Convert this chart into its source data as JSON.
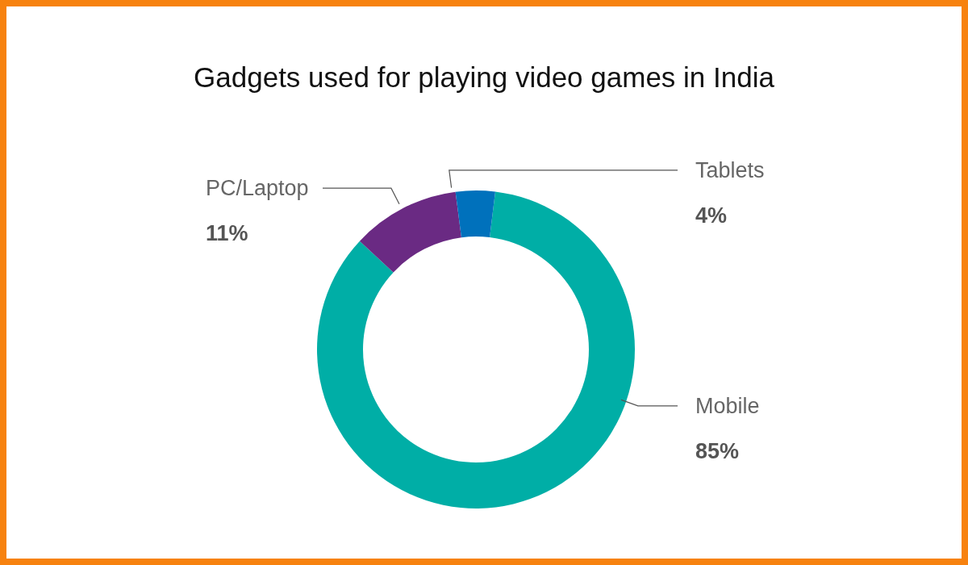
{
  "chart_data": {
    "type": "donut",
    "title": "Gadgets used for playing video games in India",
    "categories": [
      "Mobile",
      "PC/Laptop",
      "Tablets"
    ],
    "values": [
      85,
      11,
      4
    ],
    "value_labels": [
      "85%",
      "11%",
      "4%"
    ],
    "colors": [
      "#00aea6",
      "#6a2a83",
      "#0071bc"
    ]
  }
}
